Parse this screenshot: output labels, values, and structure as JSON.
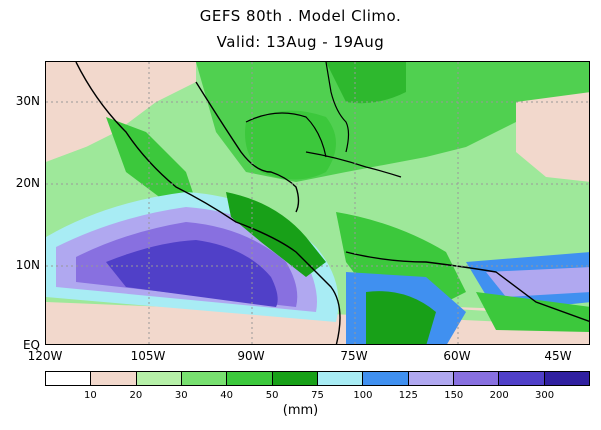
{
  "title_line1": "GEFS 80th . Model Climo.",
  "title_line2": "Valid: 13Aug - 19Aug",
  "lat_labels": [
    "30N",
    "20N",
    "10N",
    "EQ"
  ],
  "lon_labels": [
    "120W",
    "105W",
    "90W",
    "75W",
    "60W",
    "45W"
  ],
  "colorbar": {
    "colors": [
      "#ffffff",
      "#f2d8cc",
      "#b6f0a8",
      "#78e070",
      "#3cc83c",
      "#18a018",
      "#a8ecf4",
      "#4090f0",
      "#b0a8f0",
      "#8870e0",
      "#5040c8",
      "#3020a0"
    ],
    "labels": [
      "10",
      "20",
      "30",
      "40",
      "50",
      "75",
      "100",
      "125",
      "150",
      "200",
      "300"
    ]
  },
  "unit": "(mm)"
}
